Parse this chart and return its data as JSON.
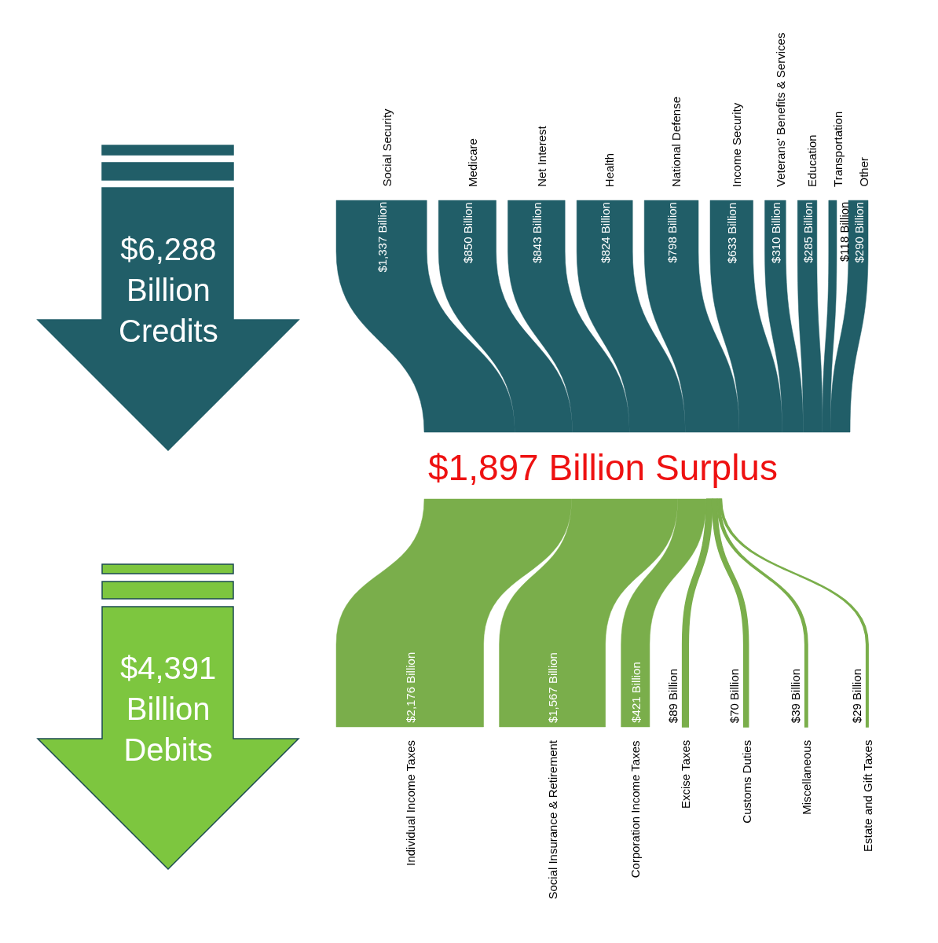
{
  "chart_data": [
    {
      "type": "other",
      "title": "$6,288 Billion Credits",
      "color": "#215e68",
      "categories": [
        "Social Security",
        "Medicare",
        "Net Interest",
        "Health",
        "National Defense",
        "Income Security",
        "Veterans' Benefits & Services",
        "Education",
        "Transportation",
        "Other"
      ],
      "values": [
        1337,
        850,
        843,
        824,
        798,
        633,
        310,
        285,
        118,
        290
      ],
      "value_labels": [
        "$1,337 Billion",
        "$850 Billion",
        "$843 Billion",
        "$824 Billion",
        "$798 Billion",
        "$633 Billion",
        "$310 Billion",
        "$285 Billion",
        "$118 Billion",
        "$290 Billion"
      ],
      "annotations": [
        "$1,897 Billion Surplus"
      ]
    },
    {
      "type": "other",
      "title": "$4,391 Billion Debits",
      "color": "#7aae4b",
      "categories": [
        "Individual Income Taxes",
        "Social Insurance & Retirement",
        "Corporation Income Taxes",
        "Excise Taxes",
        "Customs Duties",
        "Miscellaneous",
        "Estate and Gift Taxes"
      ],
      "values": [
        2176,
        1567,
        421,
        89,
        70,
        39,
        29
      ],
      "value_labels": [
        "$2,176 Billion",
        "$1,567 Billion",
        "$421 Billion",
        "$89 Billion",
        "$70 Billion",
        "$39 Billion",
        "$29 Billion"
      ]
    }
  ]
}
